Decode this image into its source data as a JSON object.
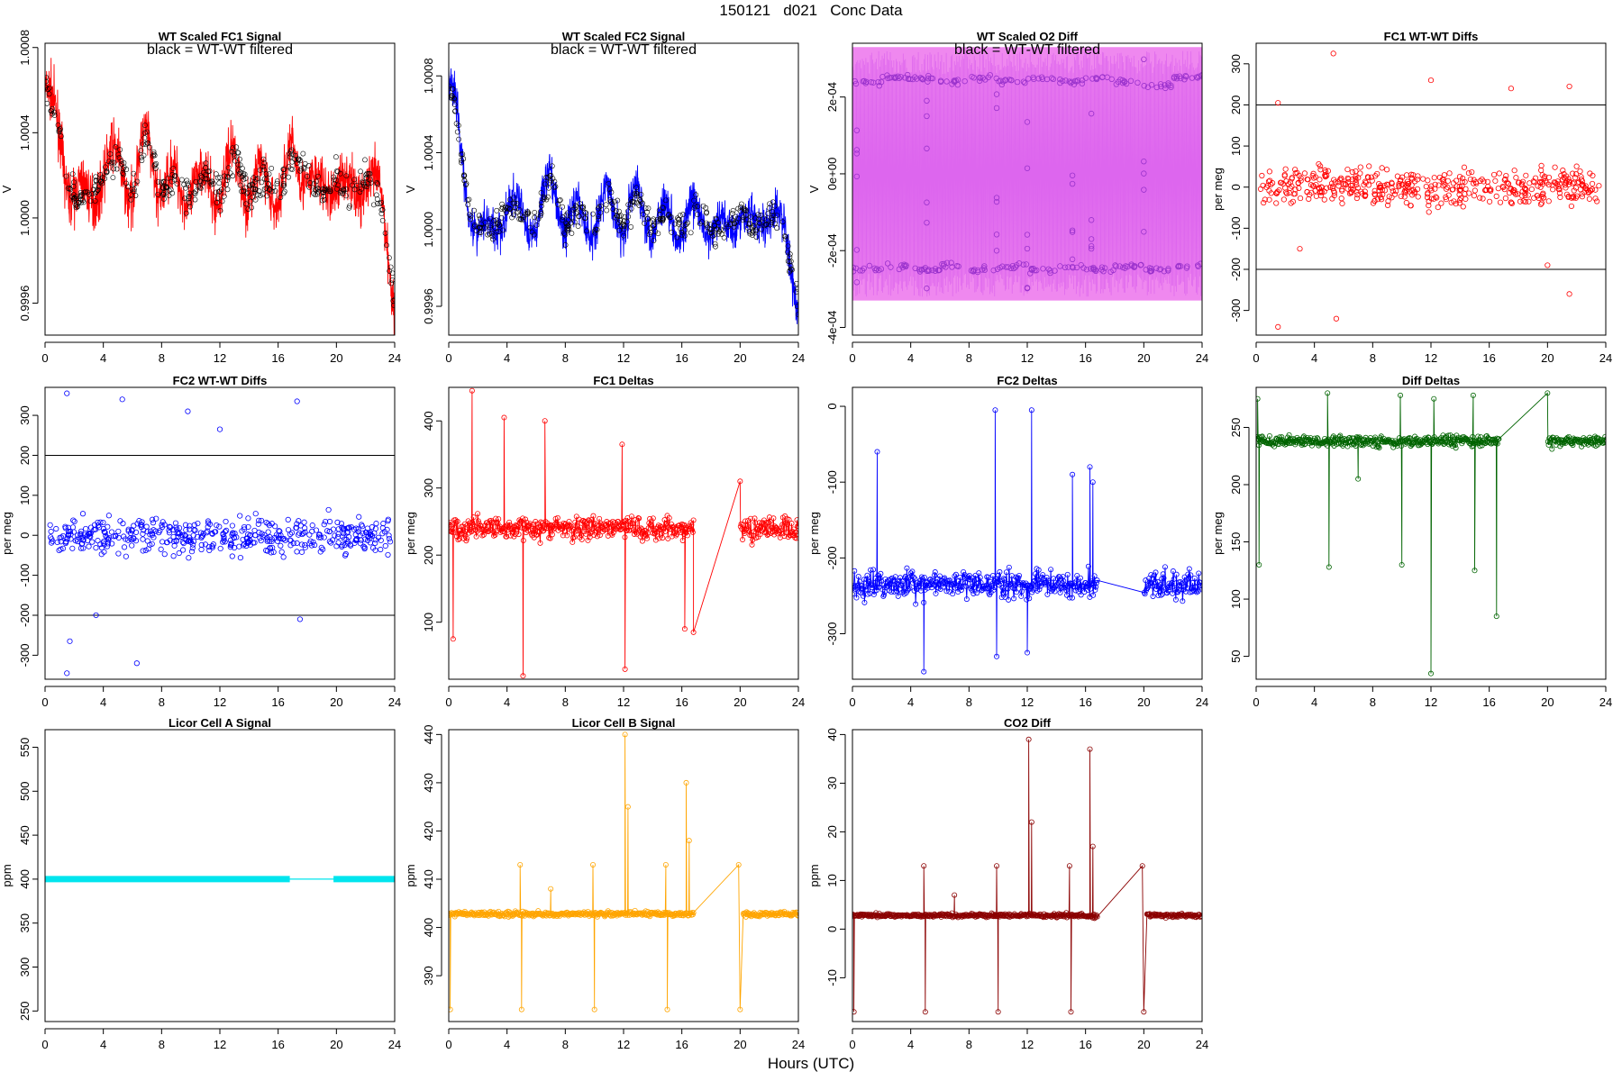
{
  "figure": {
    "title": "150121   d021   Conc Data",
    "xlabel": "Hours (UTC)"
  },
  "chart_data": [
    {
      "type": "line",
      "title": "WT Scaled FC1 Signal",
      "annotation": "black = WT-WT filtered",
      "ylabel": "V",
      "xlim": [
        0,
        24
      ],
      "ylim": [
        0.99945,
        1.00082
      ],
      "xticks": [
        0,
        4,
        8,
        12,
        16,
        20,
        24
      ],
      "yticks": [
        0.9996,
        1.0,
        1.0004,
        1.0008
      ],
      "ytick_labels": [
        "0.9996",
        "1.0000",
        "1.0004",
        "1.0008"
      ],
      "color": "#ff0000",
      "series": [
        {
          "x": [
            0,
            0.5,
            1,
            1.5,
            2,
            3,
            4,
            5,
            6,
            7,
            8,
            9,
            10,
            11,
            12,
            13,
            14,
            15,
            16,
            17,
            18,
            19,
            20,
            21,
            22,
            23,
            23.5,
            24
          ],
          "values": [
            1.0006,
            1.0005,
            1.0004,
            1.0002,
            1.0001,
            1.0001,
            1.0002,
            1.0003,
            1.0001,
            1.0004,
            1.0001,
            1.0002,
            1.0001,
            1.0002,
            1.0001,
            1.0003,
            1.0001,
            1.0002,
            1.0001,
            1.0003,
            1.0002,
            1.0001,
            1.0002,
            1.0001,
            1.0002,
            1.0001,
            0.9999,
            0.9996
          ],
          "band": 0.00018,
          "markers": "black"
        }
      ]
    },
    {
      "type": "line",
      "title": "WT Scaled FC2 Signal",
      "annotation": "black = WT-WT filtered",
      "ylabel": "V",
      "xlim": [
        0,
        24
      ],
      "ylim": [
        0.99945,
        1.00097
      ],
      "xticks": [
        0,
        4,
        8,
        12,
        16,
        20,
        24
      ],
      "yticks": [
        0.9996,
        1.0,
        1.0004,
        1.0008
      ],
      "ytick_labels": [
        "0.9996",
        "1.0000",
        "1.0004",
        "1.0008"
      ],
      "color": "#0000ff",
      "series": [
        {
          "x": [
            0,
            0.5,
            1,
            1.5,
            2,
            3,
            4,
            5,
            6,
            7,
            8,
            9,
            10,
            11,
            12,
            13,
            14,
            15,
            16,
            17,
            18,
            19,
            20,
            21,
            22,
            23,
            23.5,
            24
          ],
          "values": [
            1.0008,
            1.0006,
            1.0003,
            1.0001,
            1.0,
            1.0,
            1.0001,
            1.0001,
            1.0,
            1.0003,
            1.0,
            1.0001,
            1.0,
            1.0002,
            1.0,
            1.0002,
            1.0,
            1.0001,
            1.0,
            1.0001,
            1.0,
            1.0,
            1.0001,
            1.0,
            1.0001,
            1.0,
            0.9998,
            0.9996
          ],
          "band": 0.00016,
          "markers": "black"
        }
      ]
    },
    {
      "type": "line",
      "title": "WT Scaled O2 Diff",
      "annotation": "black = WT-WT filtered",
      "ylabel": "V",
      "xlim": [
        0,
        24
      ],
      "ylim": [
        -0.00042,
        0.00034
      ],
      "xticks": [
        0,
        4,
        8,
        12,
        16,
        20,
        24
      ],
      "yticks": [
        -0.0004,
        -0.0002,
        0,
        0.0002
      ],
      "ytick_labels": [
        "-4e-04",
        "-2e-04",
        "0e+00",
        "2e-04"
      ],
      "color": "#ee82ee",
      "series": [
        {
          "name": "upper",
          "x": [
            0,
            2,
            4,
            6,
            8,
            10,
            12,
            14,
            16,
            18,
            20,
            22,
            24
          ],
          "values": [
            0.00024,
            0.00025,
            0.00025,
            0.00024,
            0.00025,
            0.00024,
            0.00025,
            0.00024,
            0.00025,
            0.00024,
            0.00023,
            0.00025,
            0.00025
          ]
        },
        {
          "name": "lower",
          "x": [
            0,
            2,
            4,
            6,
            8,
            10,
            12,
            14,
            16,
            18,
            20,
            22,
            24
          ],
          "values": [
            -0.00025,
            -0.00024,
            -0.00025,
            -0.00024,
            -0.00025,
            -0.00024,
            -0.00025,
            -0.00024,
            -0.00025,
            -0.00024,
            -0.00025,
            -0.00024,
            -0.00024
          ]
        }
      ]
    },
    {
      "type": "scatter",
      "title": "FC1 WT-WT Diffs",
      "ylabel": "per meg",
      "xlim": [
        0,
        24
      ],
      "ylim": [
        -360,
        350
      ],
      "xticks": [
        0,
        4,
        8,
        12,
        16,
        20,
        24
      ],
      "yticks": [
        -300,
        -200,
        -100,
        0,
        100,
        200,
        300
      ],
      "ytick_labels": [
        "-300",
        "-200",
        "-100",
        "0",
        "100",
        "200",
        "300"
      ],
      "hlines": [
        200,
        -200
      ],
      "color": "#ff0000",
      "spread": 45,
      "outliers": [
        {
          "x": 5.3,
          "y": 325
        },
        {
          "x": 1.5,
          "y": -340
        },
        {
          "x": 5.5,
          "y": -320
        },
        {
          "x": 12,
          "y": 260
        },
        {
          "x": 21.5,
          "y": 245
        },
        {
          "x": 21.5,
          "y": -260
        },
        {
          "x": 1.5,
          "y": 205
        },
        {
          "x": 17.5,
          "y": 240
        },
        {
          "x": 20,
          "y": -190
        },
        {
          "x": 3,
          "y": -150
        }
      ]
    },
    {
      "type": "scatter",
      "title": "FC2 WT-WT Diffs",
      "ylabel": "per meg",
      "xlim": [
        0,
        24
      ],
      "ylim": [
        -360,
        370
      ],
      "xticks": [
        0,
        4,
        8,
        12,
        16,
        20,
        24
      ],
      "yticks": [
        -300,
        -200,
        -100,
        0,
        100,
        200,
        300
      ],
      "ytick_labels": [
        "-300",
        "-200",
        "-100",
        "0",
        "100",
        "200",
        "300"
      ],
      "hlines": [
        200,
        -200
      ],
      "color": "#0000ff",
      "spread": 45,
      "outliers": [
        {
          "x": 1.5,
          "y": 355
        },
        {
          "x": 5.3,
          "y": 340
        },
        {
          "x": 1.5,
          "y": -345
        },
        {
          "x": 6.3,
          "y": -320
        },
        {
          "x": 9.8,
          "y": 310
        },
        {
          "x": 17.3,
          "y": 335
        },
        {
          "x": 12,
          "y": 265
        },
        {
          "x": 1.7,
          "y": -265
        },
        {
          "x": 17.5,
          "y": -210
        },
        {
          "x": 3.5,
          "y": -200
        }
      ]
    },
    {
      "type": "line",
      "title": "FC1 Deltas",
      "ylabel": "per meg",
      "xlim": [
        0,
        24
      ],
      "ylim": [
        15,
        450
      ],
      "xticks": [
        0,
        4,
        8,
        12,
        16,
        20,
        24
      ],
      "yticks": [
        100,
        200,
        300,
        400
      ],
      "ytick_labels": [
        "100",
        "200",
        "300",
        "400"
      ],
      "color": "#ff0000",
      "gap": [
        16.8,
        20
      ],
      "base": 240,
      "noise": 18,
      "spikes": [
        {
          "x": 1.6,
          "y": 445
        },
        {
          "x": 3.8,
          "y": 405
        },
        {
          "x": 5.1,
          "y": 20
        },
        {
          "x": 6.6,
          "y": 400
        },
        {
          "x": 11.9,
          "y": 365
        },
        {
          "x": 12.1,
          "y": 30
        },
        {
          "x": 16.2,
          "y": 90
        },
        {
          "x": 16.8,
          "y": 85
        },
        {
          "x": 20,
          "y": 310
        },
        {
          "x": 0.3,
          "y": 75
        }
      ]
    },
    {
      "type": "line",
      "title": "FC2 Deltas",
      "ylabel": "per meg",
      "xlim": [
        0,
        24
      ],
      "ylim": [
        -360,
        25
      ],
      "xticks": [
        0,
        4,
        8,
        12,
        16,
        20,
        24
      ],
      "yticks": [
        -300,
        -200,
        -100,
        0
      ],
      "ytick_labels": [
        "-300",
        "-200",
        "-100",
        "0"
      ],
      "color": "#0000ff",
      "gap": [
        16.8,
        20
      ],
      "base": -235,
      "noise": 18,
      "spikes": [
        {
          "x": 9.8,
          "y": -5
        },
        {
          "x": 12.3,
          "y": -5
        },
        {
          "x": 4.9,
          "y": -350
        },
        {
          "x": 9.9,
          "y": -330
        },
        {
          "x": 12.0,
          "y": -325
        },
        {
          "x": 16.3,
          "y": -80
        },
        {
          "x": 1.7,
          "y": -60
        },
        {
          "x": 15.1,
          "y": -90
        },
        {
          "x": 16.5,
          "y": -100
        }
      ]
    },
    {
      "type": "line",
      "title": "Diff Deltas",
      "ylabel": "per meg",
      "xlim": [
        0,
        24
      ],
      "ylim": [
        30,
        285
      ],
      "xticks": [
        0,
        4,
        8,
        12,
        16,
        20,
        24
      ],
      "yticks": [
        50,
        100,
        150,
        200,
        250
      ],
      "ytick_labels": [
        "50",
        "100",
        "150",
        "200",
        "250"
      ],
      "color": "#006400",
      "gap": [
        16.7,
        20
      ],
      "base": 238,
      "noise": 5,
      "spikes": [
        {
          "x": 0.2,
          "y": 130
        },
        {
          "x": 0.1,
          "y": 275
        },
        {
          "x": 4.9,
          "y": 280
        },
        {
          "x": 5.0,
          "y": 128
        },
        {
          "x": 9.9,
          "y": 278
        },
        {
          "x": 10.0,
          "y": 130
        },
        {
          "x": 12.0,
          "y": 35
        },
        {
          "x": 12.2,
          "y": 275
        },
        {
          "x": 14.9,
          "y": 278
        },
        {
          "x": 15.0,
          "y": 125
        },
        {
          "x": 16.5,
          "y": 85
        },
        {
          "x": 20.0,
          "y": 280
        },
        {
          "x": 7.0,
          "y": 205
        }
      ]
    },
    {
      "type": "line",
      "title": "Licor Cell A Signal",
      "ylabel": "ppm",
      "xlim": [
        0,
        24
      ],
      "ylim": [
        238,
        570
      ],
      "xticks": [
        0,
        4,
        8,
        12,
        16,
        20,
        24
      ],
      "yticks": [
        250,
        300,
        350,
        400,
        450,
        500,
        550
      ],
      "ytick_labels": [
        "250",
        "300",
        "350",
        "400",
        "450",
        "500",
        "550"
      ],
      "color": "#00e5ee",
      "constant": 400,
      "gap": [
        16.8,
        19.8
      ]
    },
    {
      "type": "line",
      "title": "Licor Cell B Signal",
      "ylabel": "ppm",
      "xlim": [
        0,
        24
      ],
      "ylim": [
        380.5,
        441
      ],
      "xticks": [
        0,
        4,
        8,
        12,
        16,
        20,
        24
      ],
      "yticks": [
        390,
        400,
        410,
        420,
        430,
        440
      ],
      "ytick_labels": [
        "390",
        "400",
        "410",
        "420",
        "430",
        "440"
      ],
      "color": "#ffa500",
      "gap": [
        16.8,
        20.2
      ],
      "base": 402.8,
      "noise": 0.5,
      "spikes": [
        {
          "x": 0.1,
          "y": 383
        },
        {
          "x": 4.9,
          "y": 413
        },
        {
          "x": 5.0,
          "y": 383
        },
        {
          "x": 9.9,
          "y": 413
        },
        {
          "x": 10.0,
          "y": 383
        },
        {
          "x": 12.1,
          "y": 440
        },
        {
          "x": 12.3,
          "y": 425
        },
        {
          "x": 14.9,
          "y": 413
        },
        {
          "x": 15.0,
          "y": 383
        },
        {
          "x": 16.3,
          "y": 430
        },
        {
          "x": 16.5,
          "y": 418
        },
        {
          "x": 19.9,
          "y": 413
        },
        {
          "x": 20.0,
          "y": 383
        },
        {
          "x": 7.0,
          "y": 408
        }
      ]
    },
    {
      "type": "line",
      "title": "CO2 Diff",
      "ylabel": "ppm",
      "xlim": [
        0,
        24
      ],
      "ylim": [
        -19,
        41
      ],
      "xticks": [
        0,
        4,
        8,
        12,
        16,
        20,
        24
      ],
      "yticks": [
        -10,
        0,
        10,
        20,
        30,
        40
      ],
      "ytick_labels": [
        "-10",
        "0",
        "10",
        "20",
        "30",
        "40"
      ],
      "color": "#8b0000",
      "gap": [
        16.8,
        20.2
      ],
      "base": 2.8,
      "noise": 0.4,
      "spikes": [
        {
          "x": 0.1,
          "y": -17
        },
        {
          "x": 4.9,
          "y": 13
        },
        {
          "x": 5.0,
          "y": -17
        },
        {
          "x": 9.9,
          "y": 13
        },
        {
          "x": 10.0,
          "y": -17
        },
        {
          "x": 12.1,
          "y": 39
        },
        {
          "x": 12.3,
          "y": 22
        },
        {
          "x": 14.9,
          "y": 13
        },
        {
          "x": 15.0,
          "y": -17
        },
        {
          "x": 16.3,
          "y": 37
        },
        {
          "x": 16.5,
          "y": 17
        },
        {
          "x": 19.9,
          "y": 13
        },
        {
          "x": 20.0,
          "y": -17
        },
        {
          "x": 7.0,
          "y": 7
        }
      ]
    }
  ]
}
